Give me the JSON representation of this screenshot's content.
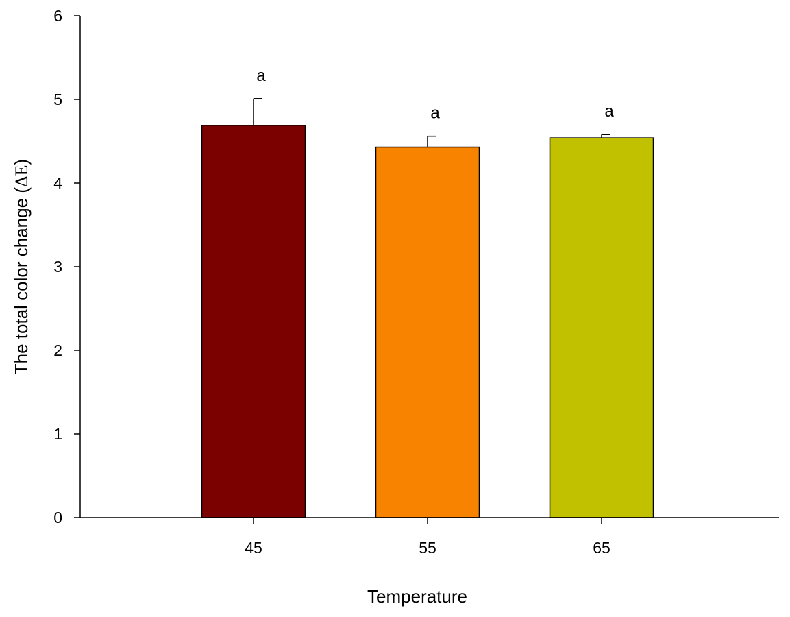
{
  "chart_data": {
    "type": "bar",
    "categories": [
      "45",
      "55",
      "65"
    ],
    "values": [
      4.69,
      4.43,
      4.54
    ],
    "errors": [
      0.32,
      0.13,
      0.04
    ],
    "significance": [
      "a",
      "a",
      "a"
    ],
    "colors": [
      "#7b0000",
      "#f88300",
      "#c1c100"
    ],
    "xlabel": "Temperature",
    "ylabel_text": "The total color change (",
    "ylabel_symbol": "ΔE",
    "ylabel_close": ")",
    "ylim": [
      0,
      6
    ],
    "yticks": [
      "0",
      "1",
      "2",
      "3",
      "4",
      "5",
      "6"
    ],
    "grid": false
  }
}
